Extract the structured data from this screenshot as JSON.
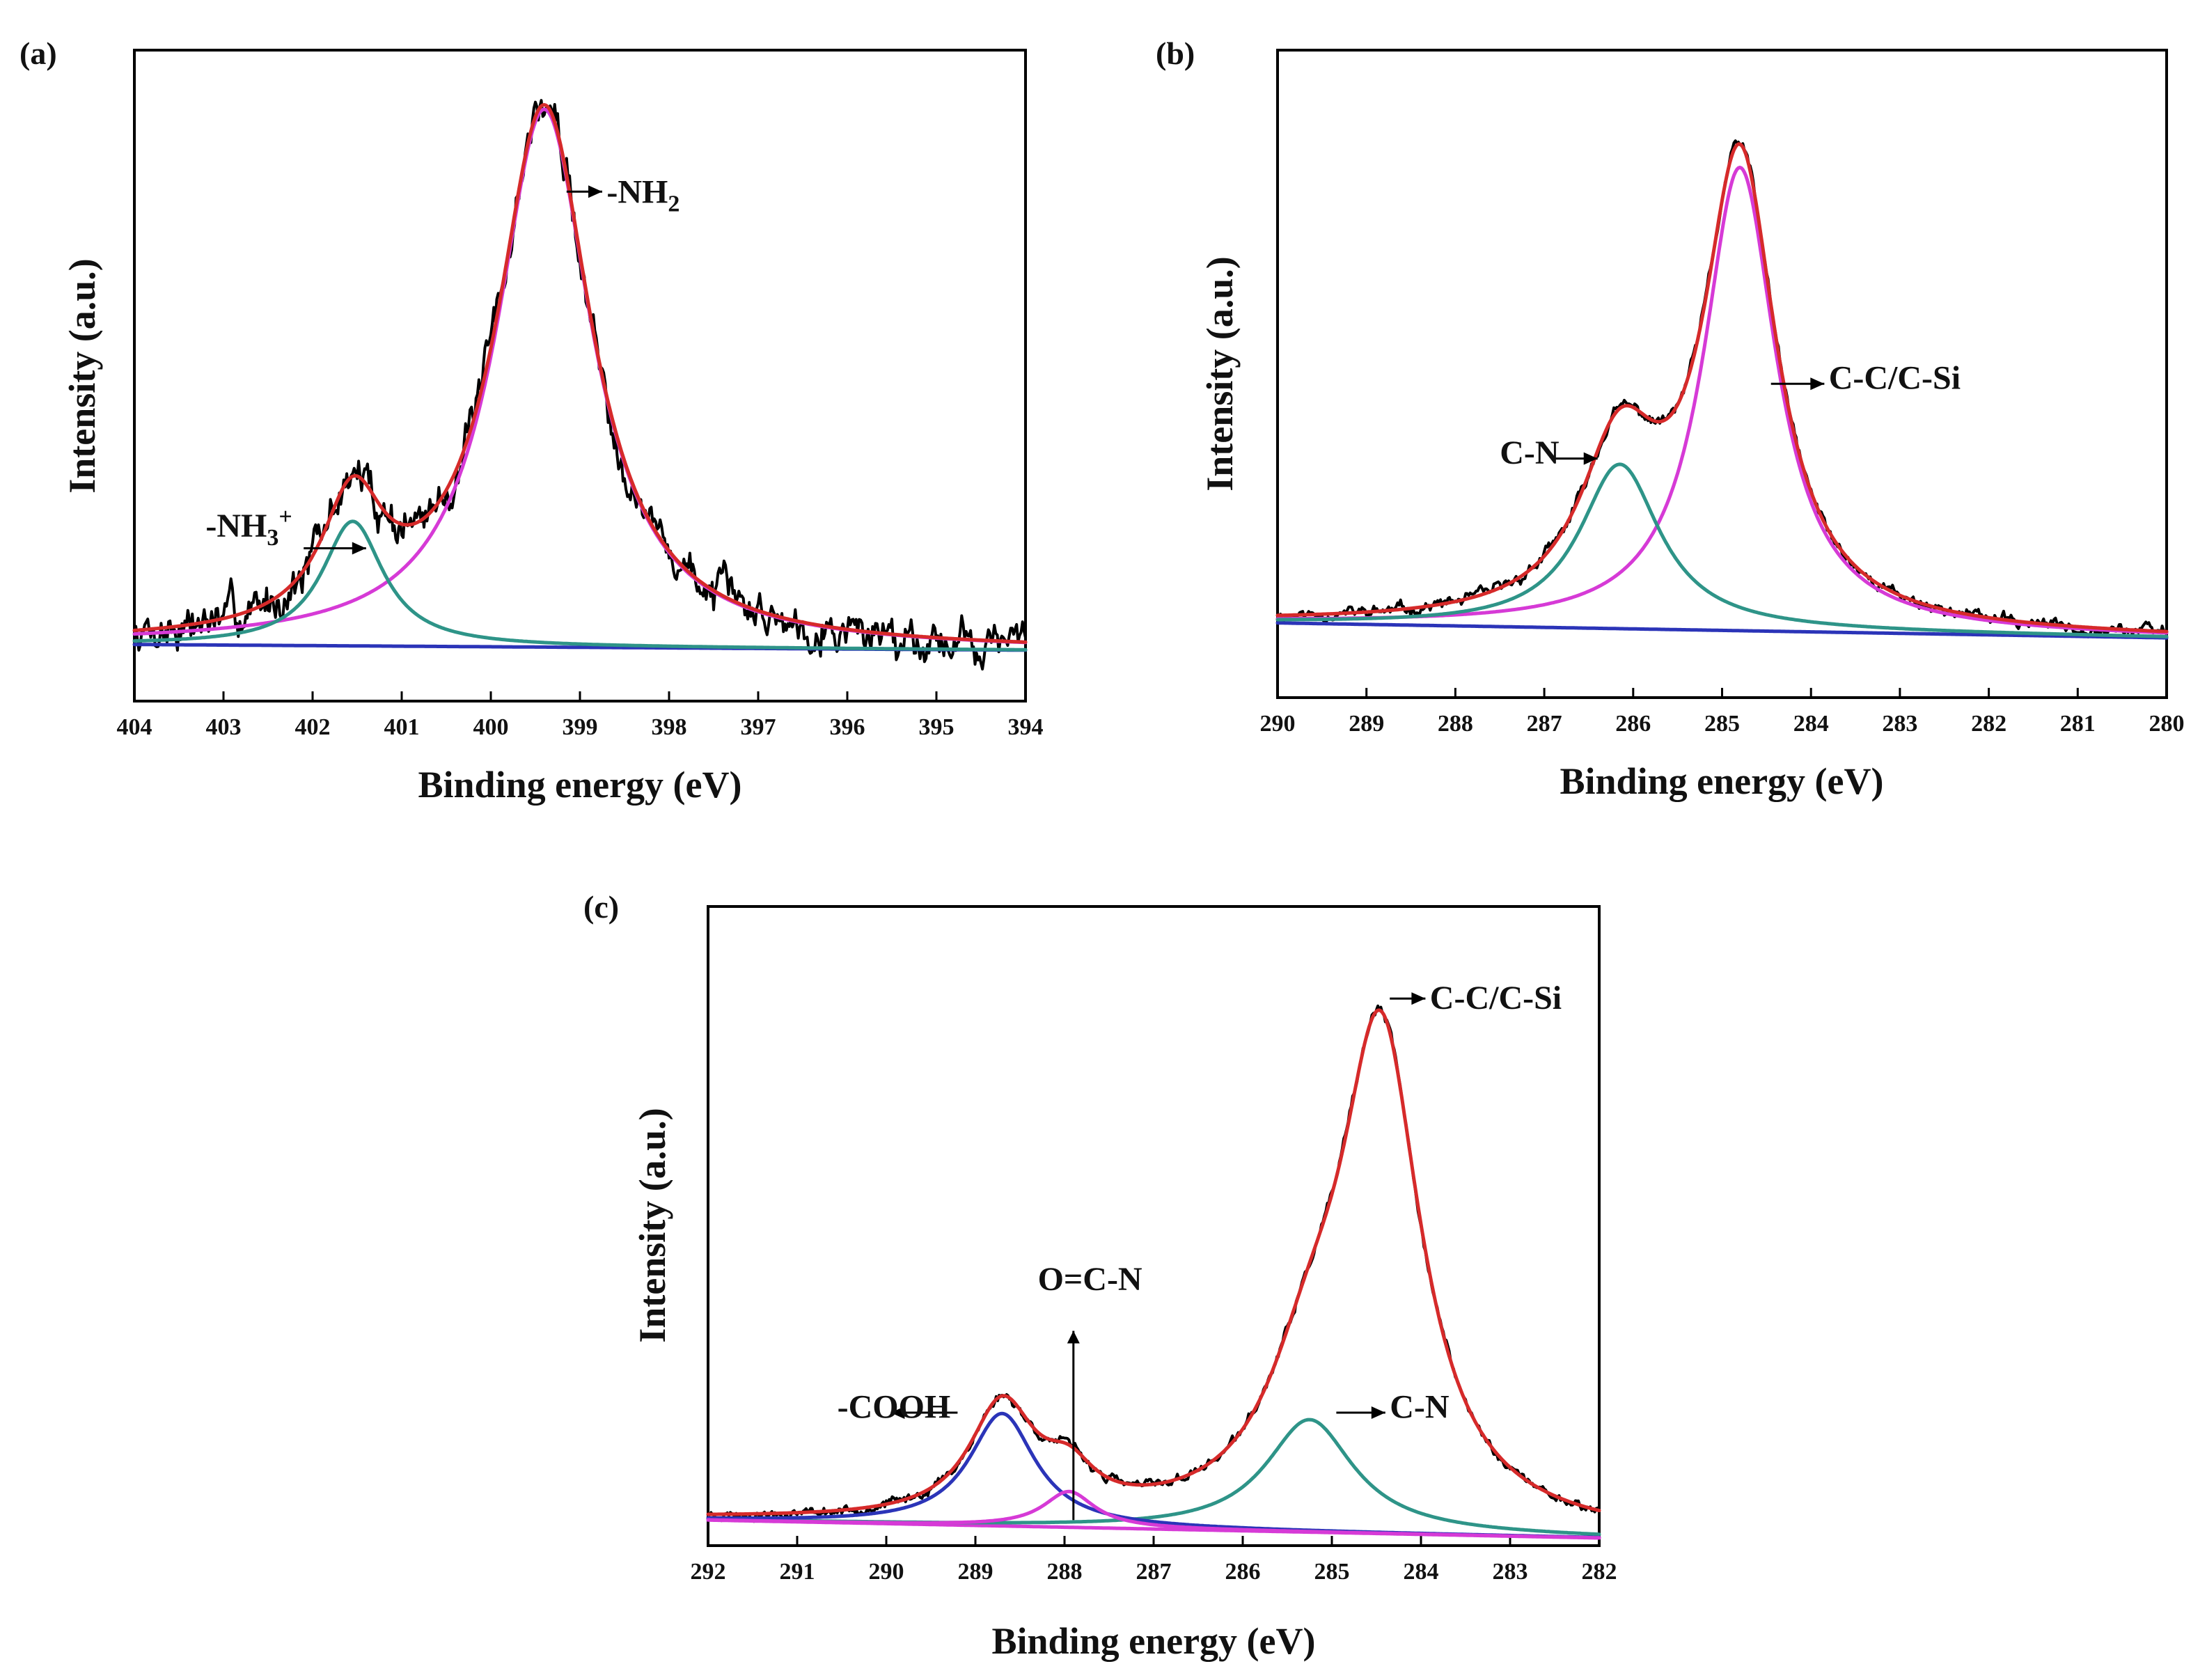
{
  "chart_data": [
    {
      "panel": "(a)",
      "type": "line",
      "title": "",
      "xlabel": "Binding energy (eV)",
      "ylabel": "Intensity (a.u.)",
      "xlim": [
        404,
        394
      ],
      "ylim": [
        0,
        1.15
      ],
      "x_ticks": [
        "404",
        "403",
        "402",
        "401",
        "400",
        "399",
        "398",
        "397",
        "396",
        "395",
        "394"
      ],
      "grid": false,
      "background": 0.1,
      "peaks": [
        {
          "name": "-NH2 fit",
          "center": 399.4,
          "height": 0.95,
          "width": 0.65,
          "color": "#d63ad6"
        },
        {
          "name": "-NH3+ fit",
          "center": 401.55,
          "height": 0.22,
          "width": 0.42,
          "color": "#2e9488"
        }
      ],
      "series": [
        {
          "name": "raw",
          "role": "raw",
          "color": "#000000",
          "noise": 0.025,
          "seed": 7
        },
        {
          "name": "envelope",
          "role": "envelope",
          "color": "#d62a2a"
        },
        {
          "name": "-NH2 fit",
          "role": "peak",
          "index": 0,
          "color": "#d63ad6"
        },
        {
          "name": "-NH3+ fit",
          "role": "peak",
          "index": 1,
          "color": "#2e9488"
        },
        {
          "name": "background",
          "role": "background",
          "color": "#2b34b8"
        }
      ],
      "annotations": [
        {
          "text": "-NH",
          "sub": "2",
          "sup": "",
          "x": 398.7,
          "y": 0.88,
          "arrow_from": 399.15,
          "arrow_to": 398.75,
          "arrow_y": 0.9
        },
        {
          "text": "-NH",
          "sub": "3",
          "sup": "+",
          "x": 403.2,
          "y": 0.29,
          "arrow_from": 402.1,
          "arrow_to": 401.4,
          "arrow_y": 0.27
        }
      ]
    },
    {
      "panel": "(b)",
      "type": "line",
      "title": "",
      "xlabel": "Binding energy (eV)",
      "ylabel": "Intensity (a.u.)",
      "xlim": [
        290,
        280
      ],
      "ylim": [
        -0.15,
        1.15
      ],
      "x_ticks": [
        "290",
        "289",
        "288",
        "287",
        "286",
        "285",
        "284",
        "283",
        "282",
        "281",
        "280"
      ],
      "grid": false,
      "background": 0.0,
      "peaks": [
        {
          "name": "C-C/C-Si fit",
          "center": 284.8,
          "height": 0.93,
          "width": 0.5,
          "color": "#d63ad6"
        },
        {
          "name": "C-N fit",
          "center": 286.15,
          "height": 0.33,
          "width": 0.55,
          "color": "#2e9488"
        }
      ],
      "series": [
        {
          "name": "raw",
          "role": "raw",
          "color": "#000000",
          "noise": 0.008,
          "seed": 11
        },
        {
          "name": "envelope",
          "role": "envelope",
          "color": "#d62a2a"
        },
        {
          "name": "C-C/C-Si fit",
          "role": "peak",
          "index": 0,
          "color": "#d63ad6"
        },
        {
          "name": "C-N fit",
          "role": "peak",
          "index": 1,
          "color": "#2e9488"
        },
        {
          "name": "background",
          "role": "background",
          "color": "#2b34b8"
        }
      ],
      "annotations": [
        {
          "text": "C-C/C-Si",
          "sub": "",
          "sup": "",
          "x": 283.8,
          "y": 0.47,
          "arrow_from": 284.45,
          "arrow_to": 283.85,
          "arrow_y": 0.48
        },
        {
          "text": "C-N",
          "sub": "",
          "sup": "",
          "x": 287.5,
          "y": 0.32,
          "arrow_from": 286.9,
          "arrow_to": 286.4,
          "arrow_y": 0.33
        }
      ]
    },
    {
      "panel": "(c)",
      "type": "line",
      "title": "",
      "xlabel": "Binding energy (eV)",
      "ylabel": "Intensity (a.u.)",
      "xlim": [
        292,
        282
      ],
      "ylim": [
        -0.05,
        1.2
      ],
      "x_ticks": [
        "292",
        "291",
        "290",
        "289",
        "288",
        "287",
        "286",
        "285",
        "284",
        "283",
        "282"
      ],
      "grid": false,
      "background": 0.0,
      "peaks": [
        {
          "name": "C-C/C-Si fit",
          "center": 284.45,
          "height": 0.94,
          "width": 0.55,
          "color": "#d62a2a"
        },
        {
          "name": "C-N fit",
          "center": 285.25,
          "height": 0.22,
          "width": 0.6,
          "color": "#2e9488"
        },
        {
          "name": "-COOH fit",
          "center": 288.7,
          "height": 0.22,
          "width": 0.45,
          "color": "#2b34b8"
        },
        {
          "name": "O=C-N fit",
          "center": 287.95,
          "height": 0.07,
          "width": 0.35,
          "color": "#d63ad6"
        }
      ],
      "series": [
        {
          "name": "raw",
          "role": "raw",
          "color": "#000000",
          "noise": 0.006,
          "seed": 23
        },
        {
          "name": "envelope",
          "role": "envelope",
          "color": "#d62a2a"
        },
        {
          "name": "C-N fit",
          "role": "peak",
          "index": 1,
          "color": "#2e9488"
        },
        {
          "name": "-COOH fit",
          "role": "peak",
          "index": 2,
          "color": "#2b34b8"
        },
        {
          "name": "O=C-N fit",
          "role": "peak",
          "index": 3,
          "color": "#d63ad6"
        },
        {
          "name": "background",
          "role": "background",
          "color": "#d63ad6"
        }
      ],
      "annotations": [
        {
          "text": "C-C/C-Si",
          "sub": "",
          "sup": "",
          "x": 283.9,
          "y": 1.0,
          "arrow_from": 284.35,
          "arrow_to": 283.95,
          "arrow_y": 1.02
        },
        {
          "text": "C-N",
          "sub": "",
          "sup": "",
          "x": 284.35,
          "y": 0.2,
          "arrow_from": 284.95,
          "arrow_to": 284.4,
          "arrow_y": 0.21
        },
        {
          "text": "-COOH",
          "sub": "",
          "sup": "",
          "x": 290.55,
          "y": 0.2,
          "arrow_from": 289.2,
          "arrow_to": 289.95,
          "arrow_y": 0.21
        },
        {
          "text": "O=C-N",
          "sub": "",
          "sup": "",
          "x": 288.3,
          "y": 0.45,
          "arrow_from": 287.9,
          "arrow_to": 287.9,
          "arrow_y": 0.0,
          "vertical": true,
          "arrow_top": 0.37
        }
      ]
    }
  ]
}
